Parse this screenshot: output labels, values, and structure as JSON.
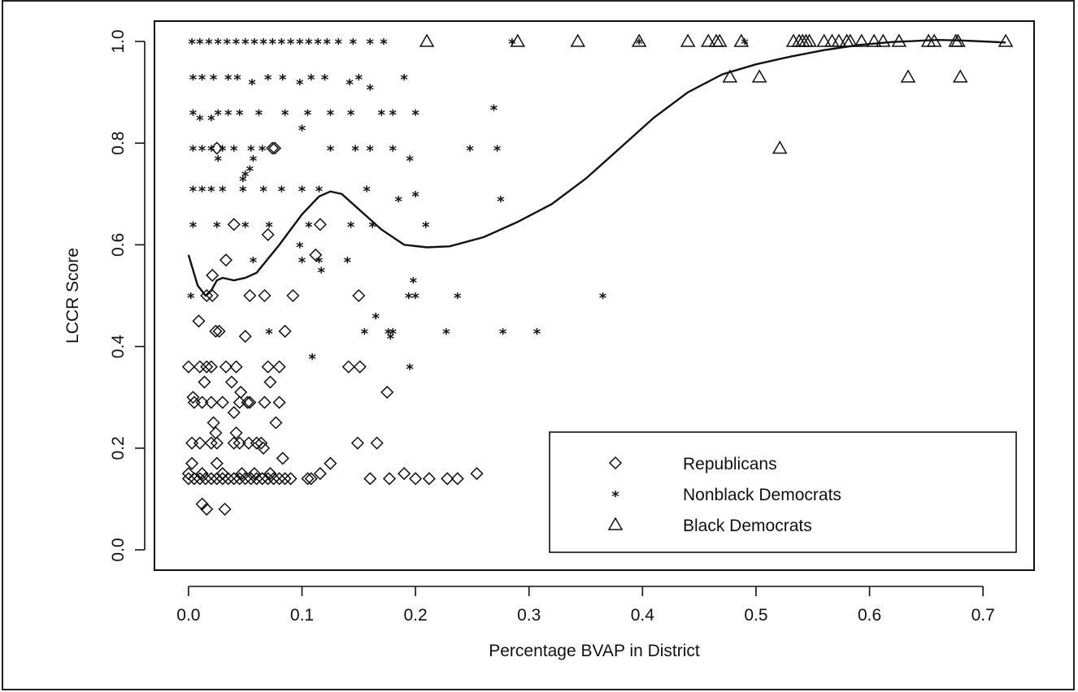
{
  "chart_data": {
    "type": "scatter",
    "title": "",
    "xlabel": "Percentage BVAP in District",
    "ylabel": "LCCR Score",
    "xlim": [
      -0.03,
      0.745
    ],
    "ylim": [
      -0.04,
      1.04
    ],
    "xticks": [
      0.0,
      0.1,
      0.2,
      0.3,
      0.4,
      0.5,
      0.6,
      0.7
    ],
    "xtick_labels": [
      "0.0",
      "0.1",
      "0.2",
      "0.3",
      "0.4",
      "0.5",
      "0.6",
      "0.7"
    ],
    "yticks": [
      0.0,
      0.2,
      0.4,
      0.6,
      0.8,
      1.0
    ],
    "ytick_labels": [
      "0.0",
      "0.2",
      "0.4",
      "0.6",
      "0.8",
      "1.0"
    ],
    "grid": false,
    "legend_position": "bottom-right",
    "series": [
      {
        "name": "Republicans",
        "marker": "diamond",
        "points": [
          [
            0.0,
            0.14
          ],
          [
            0.005,
            0.14
          ],
          [
            0.01,
            0.14
          ],
          [
            0.015,
            0.14
          ],
          [
            0.02,
            0.14
          ],
          [
            0.025,
            0.14
          ],
          [
            0.03,
            0.14
          ],
          [
            0.035,
            0.14
          ],
          [
            0.04,
            0.14
          ],
          [
            0.045,
            0.14
          ],
          [
            0.05,
            0.14
          ],
          [
            0.055,
            0.14
          ],
          [
            0.06,
            0.14
          ],
          [
            0.065,
            0.14
          ],
          [
            0.07,
            0.14
          ],
          [
            0.075,
            0.14
          ],
          [
            0.08,
            0.14
          ],
          [
            0.085,
            0.14
          ],
          [
            0.09,
            0.14
          ],
          [
            0.105,
            0.14
          ],
          [
            0.108,
            0.14
          ],
          [
            0.16,
            0.14
          ],
          [
            0.177,
            0.14
          ],
          [
            0.2,
            0.14
          ],
          [
            0.212,
            0.14
          ],
          [
            0.228,
            0.14
          ],
          [
            0.237,
            0.14
          ],
          [
            0.0,
            0.15
          ],
          [
            0.012,
            0.15
          ],
          [
            0.03,
            0.15
          ],
          [
            0.047,
            0.15
          ],
          [
            0.058,
            0.15
          ],
          [
            0.072,
            0.15
          ],
          [
            0.116,
            0.15
          ],
          [
            0.19,
            0.15
          ],
          [
            0.254,
            0.15
          ],
          [
            0.125,
            0.17
          ],
          [
            0.003,
            0.17
          ],
          [
            0.025,
            0.17
          ],
          [
            0.003,
            0.21
          ],
          [
            0.01,
            0.21
          ],
          [
            0.02,
            0.21
          ],
          [
            0.025,
            0.21
          ],
          [
            0.04,
            0.21
          ],
          [
            0.045,
            0.21
          ],
          [
            0.053,
            0.21
          ],
          [
            0.06,
            0.21
          ],
          [
            0.064,
            0.21
          ],
          [
            0.149,
            0.21
          ],
          [
            0.166,
            0.21
          ],
          [
            0.066,
            0.2
          ],
          [
            0.083,
            0.18
          ],
          [
            0.022,
            0.25
          ],
          [
            0.024,
            0.23
          ],
          [
            0.042,
            0.23
          ],
          [
            0.077,
            0.25
          ],
          [
            0.005,
            0.29
          ],
          [
            0.012,
            0.29
          ],
          [
            0.02,
            0.29
          ],
          [
            0.03,
            0.29
          ],
          [
            0.045,
            0.29
          ],
          [
            0.052,
            0.29
          ],
          [
            0.054,
            0.29
          ],
          [
            0.067,
            0.29
          ],
          [
            0.08,
            0.29
          ],
          [
            0.175,
            0.31
          ],
          [
            0.004,
            0.3
          ],
          [
            0.046,
            0.31
          ],
          [
            0.04,
            0.27
          ],
          [
            0.072,
            0.33
          ],
          [
            0.014,
            0.33
          ],
          [
            0.038,
            0.33
          ],
          [
            0.0,
            0.36
          ],
          [
            0.01,
            0.36
          ],
          [
            0.016,
            0.36
          ],
          [
            0.02,
            0.36
          ],
          [
            0.033,
            0.36
          ],
          [
            0.042,
            0.36
          ],
          [
            0.07,
            0.36
          ],
          [
            0.08,
            0.36
          ],
          [
            0.141,
            0.36
          ],
          [
            0.151,
            0.36
          ],
          [
            0.024,
            0.43
          ],
          [
            0.027,
            0.43
          ],
          [
            0.05,
            0.42
          ],
          [
            0.085,
            0.43
          ],
          [
            0.009,
            0.45
          ],
          [
            0.016,
            0.5
          ],
          [
            0.021,
            0.5
          ],
          [
            0.054,
            0.5
          ],
          [
            0.067,
            0.5
          ],
          [
            0.092,
            0.5
          ],
          [
            0.15,
            0.5
          ],
          [
            0.021,
            0.54
          ],
          [
            0.033,
            0.57
          ],
          [
            0.112,
            0.58
          ],
          [
            0.07,
            0.62
          ],
          [
            0.04,
            0.64
          ],
          [
            0.116,
            0.64
          ],
          [
            0.025,
            0.79
          ],
          [
            0.074,
            0.79
          ],
          [
            0.076,
            0.79
          ],
          [
            0.012,
            0.09
          ],
          [
            0.016,
            0.08
          ],
          [
            0.032,
            0.08
          ]
        ]
      },
      {
        "name": "Nonblack Democrats",
        "marker": "star",
        "points": [
          [
            0.003,
            1.0
          ],
          [
            0.01,
            1.0
          ],
          [
            0.018,
            1.0
          ],
          [
            0.026,
            1.0
          ],
          [
            0.034,
            1.0
          ],
          [
            0.042,
            1.0
          ],
          [
            0.05,
            1.0
          ],
          [
            0.058,
            1.0
          ],
          [
            0.066,
            1.0
          ],
          [
            0.074,
            1.0
          ],
          [
            0.082,
            1.0
          ],
          [
            0.09,
            1.0
          ],
          [
            0.098,
            1.0
          ],
          [
            0.106,
            1.0
          ],
          [
            0.114,
            1.0
          ],
          [
            0.122,
            1.0
          ],
          [
            0.132,
            1.0
          ],
          [
            0.145,
            1.0
          ],
          [
            0.16,
            1.0
          ],
          [
            0.172,
            1.0
          ],
          [
            0.285,
            1.0
          ],
          [
            0.397,
            1.0
          ],
          [
            0.49,
            1.0
          ],
          [
            0.004,
            0.93
          ],
          [
            0.012,
            0.93
          ],
          [
            0.022,
            0.93
          ],
          [
            0.035,
            0.93
          ],
          [
            0.043,
            0.93
          ],
          [
            0.056,
            0.92
          ],
          [
            0.07,
            0.93
          ],
          [
            0.083,
            0.93
          ],
          [
            0.098,
            0.92
          ],
          [
            0.108,
            0.93
          ],
          [
            0.12,
            0.93
          ],
          [
            0.142,
            0.92
          ],
          [
            0.15,
            0.93
          ],
          [
            0.16,
            0.91
          ],
          [
            0.19,
            0.93
          ],
          [
            0.004,
            0.86
          ],
          [
            0.01,
            0.85
          ],
          [
            0.02,
            0.85
          ],
          [
            0.026,
            0.86
          ],
          [
            0.035,
            0.86
          ],
          [
            0.045,
            0.86
          ],
          [
            0.062,
            0.86
          ],
          [
            0.085,
            0.86
          ],
          [
            0.105,
            0.86
          ],
          [
            0.125,
            0.86
          ],
          [
            0.143,
            0.86
          ],
          [
            0.17,
            0.86
          ],
          [
            0.18,
            0.86
          ],
          [
            0.2,
            0.86
          ],
          [
            0.269,
            0.87
          ],
          [
            0.1,
            0.83
          ],
          [
            0.004,
            0.79
          ],
          [
            0.012,
            0.79
          ],
          [
            0.02,
            0.79
          ],
          [
            0.03,
            0.79
          ],
          [
            0.04,
            0.79
          ],
          [
            0.055,
            0.79
          ],
          [
            0.065,
            0.79
          ],
          [
            0.125,
            0.79
          ],
          [
            0.147,
            0.79
          ],
          [
            0.16,
            0.79
          ],
          [
            0.18,
            0.79
          ],
          [
            0.248,
            0.79
          ],
          [
            0.272,
            0.79
          ],
          [
            0.026,
            0.77
          ],
          [
            0.057,
            0.77
          ],
          [
            0.195,
            0.77
          ],
          [
            0.05,
            0.74
          ],
          [
            0.054,
            0.75
          ],
          [
            0.048,
            0.73
          ],
          [
            0.004,
            0.71
          ],
          [
            0.012,
            0.71
          ],
          [
            0.02,
            0.71
          ],
          [
            0.03,
            0.71
          ],
          [
            0.048,
            0.71
          ],
          [
            0.066,
            0.71
          ],
          [
            0.082,
            0.71
          ],
          [
            0.1,
            0.71
          ],
          [
            0.115,
            0.71
          ],
          [
            0.157,
            0.71
          ],
          [
            0.2,
            0.7
          ],
          [
            0.185,
            0.69
          ],
          [
            0.275,
            0.69
          ],
          [
            0.004,
            0.64
          ],
          [
            0.025,
            0.64
          ],
          [
            0.05,
            0.64
          ],
          [
            0.071,
            0.64
          ],
          [
            0.106,
            0.64
          ],
          [
            0.143,
            0.64
          ],
          [
            0.162,
            0.64
          ],
          [
            0.209,
            0.64
          ],
          [
            0.098,
            0.6
          ],
          [
            0.057,
            0.57
          ],
          [
            0.1,
            0.57
          ],
          [
            0.115,
            0.57
          ],
          [
            0.14,
            0.57
          ],
          [
            0.117,
            0.55
          ],
          [
            0.198,
            0.53
          ],
          [
            0.002,
            0.5
          ],
          [
            0.194,
            0.5
          ],
          [
            0.2,
            0.5
          ],
          [
            0.237,
            0.5
          ],
          [
            0.365,
            0.5
          ],
          [
            0.071,
            0.43
          ],
          [
            0.155,
            0.43
          ],
          [
            0.176,
            0.43
          ],
          [
            0.18,
            0.43
          ],
          [
            0.227,
            0.43
          ],
          [
            0.277,
            0.43
          ],
          [
            0.307,
            0.43
          ],
          [
            0.165,
            0.46
          ],
          [
            0.178,
            0.42
          ],
          [
            0.109,
            0.38
          ],
          [
            0.195,
            0.36
          ]
        ]
      },
      {
        "name": "Black Democrats",
        "marker": "triangle",
        "points": [
          [
            0.21,
            1.0
          ],
          [
            0.29,
            1.0
          ],
          [
            0.343,
            1.0
          ],
          [
            0.397,
            1.0
          ],
          [
            0.44,
            1.0
          ],
          [
            0.458,
            1.0
          ],
          [
            0.465,
            1.0
          ],
          [
            0.468,
            1.0
          ],
          [
            0.487,
            1.0
          ],
          [
            0.533,
            1.0
          ],
          [
            0.538,
            1.0
          ],
          [
            0.541,
            1.0
          ],
          [
            0.544,
            1.0
          ],
          [
            0.547,
            1.0
          ],
          [
            0.56,
            1.0
          ],
          [
            0.567,
            1.0
          ],
          [
            0.573,
            1.0
          ],
          [
            0.58,
            1.0
          ],
          [
            0.583,
            1.0
          ],
          [
            0.593,
            1.0
          ],
          [
            0.604,
            1.0
          ],
          [
            0.612,
            1.0
          ],
          [
            0.626,
            1.0
          ],
          [
            0.652,
            1.0
          ],
          [
            0.657,
            1.0
          ],
          [
            0.676,
            1.0
          ],
          [
            0.678,
            1.0
          ],
          [
            0.72,
            1.0
          ],
          [
            0.477,
            0.93
          ],
          [
            0.503,
            0.93
          ],
          [
            0.634,
            0.93
          ],
          [
            0.68,
            0.93
          ],
          [
            0.521,
            0.79
          ]
        ]
      }
    ],
    "fit_line": {
      "x": [
        0.0,
        0.008,
        0.015,
        0.02,
        0.025,
        0.03,
        0.04,
        0.05,
        0.06,
        0.08,
        0.1,
        0.115,
        0.125,
        0.135,
        0.15,
        0.17,
        0.19,
        0.21,
        0.23,
        0.26,
        0.29,
        0.32,
        0.35,
        0.38,
        0.41,
        0.44,
        0.47,
        0.5,
        0.53,
        0.56,
        0.59,
        0.62,
        0.64,
        0.66,
        0.68,
        0.7,
        0.72
      ],
      "y": [
        0.58,
        0.52,
        0.5,
        0.51,
        0.53,
        0.535,
        0.53,
        0.535,
        0.545,
        0.6,
        0.66,
        0.695,
        0.705,
        0.7,
        0.67,
        0.63,
        0.6,
        0.595,
        0.597,
        0.615,
        0.645,
        0.68,
        0.73,
        0.79,
        0.85,
        0.9,
        0.935,
        0.955,
        0.97,
        0.983,
        0.993,
        0.999,
        1.001,
        1.003,
        1.002,
        1.0,
        0.998
      ]
    },
    "legend": {
      "entries": [
        {
          "label": "Republicans",
          "marker": "diamond"
        },
        {
          "label": "Nonblack Democrats",
          "marker": "star"
        },
        {
          "label": "Black Democrats",
          "marker": "triangle"
        }
      ]
    }
  }
}
